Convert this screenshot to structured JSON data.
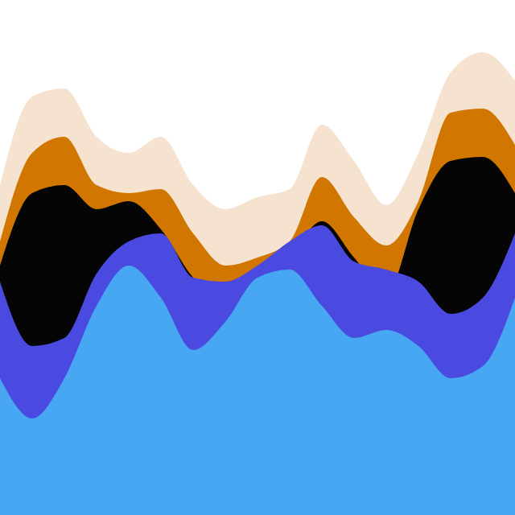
{
  "chart_data": {
    "type": "area",
    "stacked": false,
    "tick_labels": false,
    "grid": false,
    "x": [
      0,
      40,
      80,
      120,
      160,
      200,
      240,
      280,
      320,
      360,
      400,
      440,
      480,
      520,
      560,
      600,
      640
    ],
    "xlim": [
      0,
      640
    ],
    "ylim": [
      0,
      640
    ],
    "series": [
      {
        "color": "#f5e3cf",
        "values": [
          410,
          520,
          530,
          470,
          450,
          470,
          410,
          380,
          395,
          405,
          485,
          440,
          385,
          450,
          550,
          575,
          540
        ]
      },
      {
        "color": "#d17600",
        "values": [
          340,
          450,
          470,
          410,
          400,
          405,
          350,
          310,
          320,
          340,
          420,
          370,
          335,
          390,
          500,
          505,
          460
        ]
      },
      {
        "color": "#050505",
        "values": [
          310,
          400,
          410,
          380,
          390,
          355,
          295,
          265,
          280,
          320,
          365,
          320,
          275,
          380,
          440,
          445,
          400
        ]
      },
      {
        "color": "#4a4ae0",
        "values": [
          290,
          210,
          220,
          300,
          340,
          350,
          295,
          290,
          310,
          340,
          360,
          315,
          305,
          290,
          250,
          270,
          350
        ]
      },
      {
        "color": "#47a7f2",
        "values": [
          170,
          120,
          170,
          260,
          310,
          270,
          205,
          240,
          295,
          305,
          260,
          220,
          230,
          210,
          170,
          185,
          270
        ]
      }
    ]
  }
}
